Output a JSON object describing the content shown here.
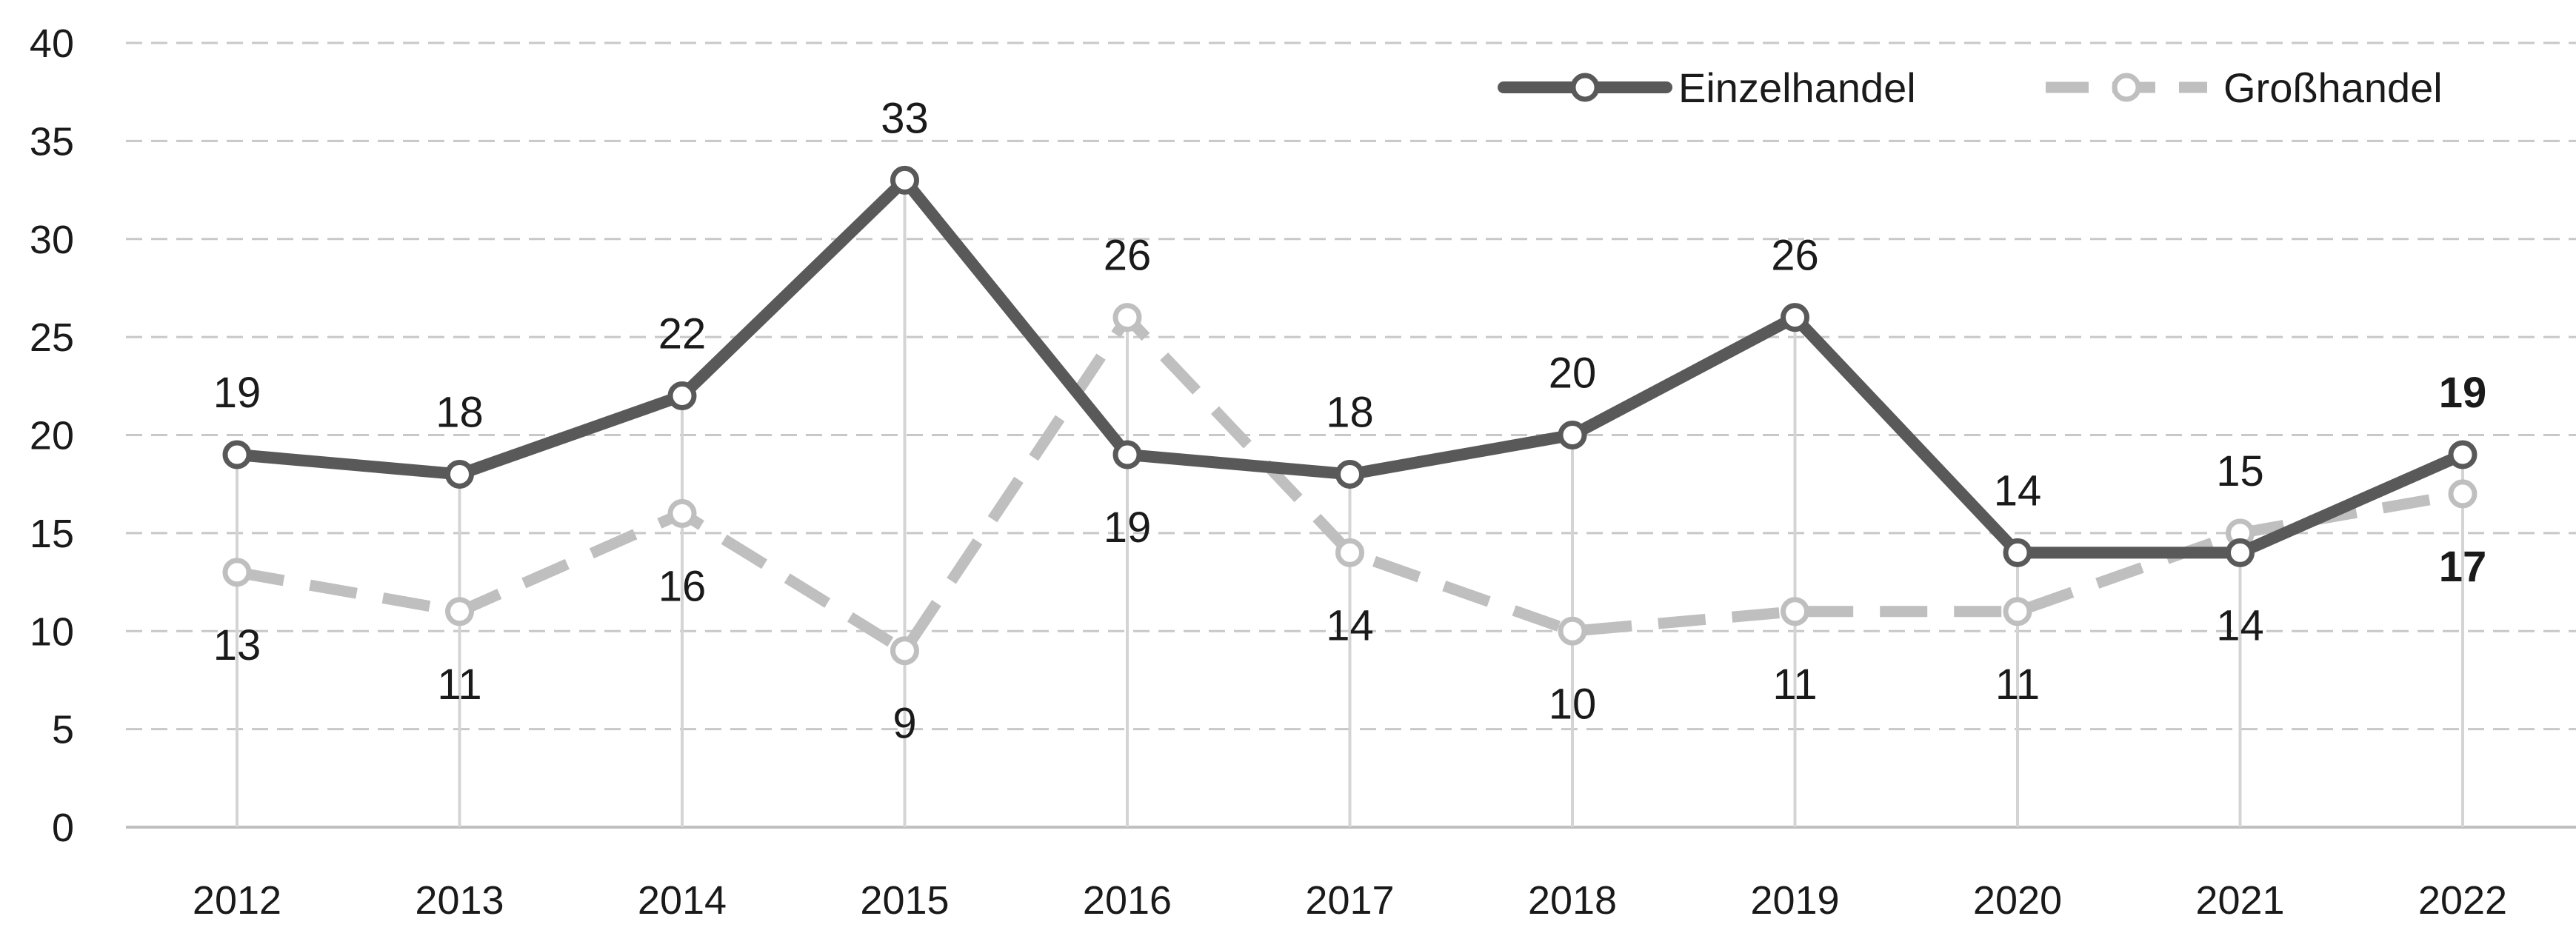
{
  "chart_data": {
    "type": "line",
    "title": "",
    "xlabel": "",
    "ylabel": "",
    "categories": [
      "2012",
      "2013",
      "2014",
      "2015",
      "2016",
      "2017",
      "2018",
      "2019",
      "2020",
      "2021",
      "2022"
    ],
    "y_ticks": [
      "0",
      "5",
      "10",
      "15",
      "20",
      "25",
      "30",
      "35",
      "40"
    ],
    "ylim": [
      0,
      40
    ],
    "grid": "horizontal-dashed",
    "legend_position": "top-right",
    "series": [
      {
        "name": "Einzelhandel",
        "values": [
          19,
          18,
          22,
          33,
          19,
          18,
          20,
          26,
          14,
          14,
          19
        ],
        "labels": [
          "19",
          "18",
          "22",
          "33",
          "19",
          "18",
          "20",
          "26",
          "14",
          "14",
          "19"
        ],
        "label_side": [
          "above",
          "above",
          "above",
          "above",
          "below",
          "above",
          "above",
          "above",
          "above",
          "below",
          "above"
        ],
        "last_label_bold": true,
        "color": "#595959",
        "style": "solid"
      },
      {
        "name": "Großhandel",
        "values": [
          13,
          11,
          16,
          9,
          26,
          14,
          10,
          11,
          11,
          15,
          17
        ],
        "labels": [
          "13",
          "11",
          "16",
          "9",
          "26",
          "14",
          "10",
          "11",
          "11",
          "15",
          "17"
        ],
        "label_side": [
          "below",
          "below",
          "below",
          "below",
          "above",
          "below",
          "below",
          "below",
          "below",
          "above",
          "below"
        ],
        "last_label_bold": true,
        "color": "#bfbfbf",
        "style": "dashed"
      }
    ]
  }
}
